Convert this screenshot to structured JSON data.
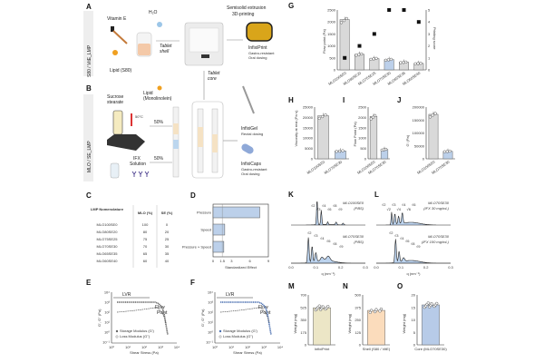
{
  "panel_labels": [
    "A",
    "B",
    "C",
    "D",
    "E",
    "F",
    "G",
    "H",
    "I",
    "J",
    "K",
    "L",
    "M",
    "N",
    "O"
  ],
  "side_labels": {
    "top": "S80 / VitE_LMP",
    "bottom": "MLO / SE_LMP"
  },
  "panel_a": {
    "vitamin_e": "Vitamin E",
    "h2o": "H₂O",
    "lipid": "Lipid (S80)",
    "tablet_shell": [
      "Tablet",
      "shell"
    ],
    "printing": [
      "Semisolid extrusion",
      "3D-printing"
    ],
    "product": {
      "name": "InfixiPrint",
      "lines": [
        "Gastro-resistant",
        "Oral dosing"
      ]
    },
    "tablet_core": [
      "Tablet",
      "core"
    ]
  },
  "panel_b": {
    "sucrose": [
      "Sucrose",
      "stearate"
    ],
    "lipid": [
      "Lipid",
      "(Monolinolein)"
    ],
    "temp": "50°C",
    "pct_top": "50%",
    "pct_bottom": "50%",
    "ifx": [
      "IFX",
      "Solution"
    ],
    "gel": {
      "name": "InfixiGel",
      "lines": [
        "Rectal dosing"
      ]
    },
    "caps": {
      "name": "InfixiCaps",
      "lines": [
        "Gastro-resistant",
        "Oral dosing"
      ]
    }
  },
  "panel_c": {
    "headers": [
      "LMP Nomenclature",
      "MLO (%)",
      "SE (%)"
    ],
    "rows": [
      [
        "MLO100SE0",
        "100",
        "0"
      ],
      [
        "MLO80SE20",
        "80",
        "20"
      ],
      [
        "MLO75SE25",
        "75",
        "25"
      ],
      [
        "MLO70SE30",
        "70",
        "30"
      ],
      [
        "MLO65SE35",
        "65",
        "35"
      ],
      [
        "MLO60SE40",
        "60",
        "40"
      ]
    ]
  },
  "panel_e": {
    "lvr": "LVR",
    "flow_point": [
      "Flow",
      "Point"
    ],
    "legend": [
      "Storage Modulus (G')",
      "Loss Modulus (G'')"
    ],
    "xlabel": "Shear Stress (Pa)",
    "ylabel": "G', G'' (Pa)",
    "xticks": [
      "10⁰",
      "10¹",
      "10²",
      "10³",
      "10⁴"
    ],
    "yticks": [
      "10⁴",
      "10³",
      "10²",
      "10¹",
      "10⁰",
      "10⁻¹"
    ]
  },
  "panel_f": {
    "lvr": "LVR",
    "flow_point": [
      "Flow",
      "Point"
    ],
    "legend": [
      "Storage Modulus (G')",
      "Loss Modulus (G'')"
    ],
    "xlabel": "Shear Stress (Pa)",
    "ylabel": "G', G'' (Pa)",
    "xticks": [
      "10⁰",
      "10¹",
      "10²",
      "10³",
      "10⁴"
    ],
    "yticks": [
      "10⁴",
      "10³",
      "10²",
      "10¹",
      "10⁰",
      "10⁻¹"
    ]
  },
  "panel_k": {
    "top": [
      "MLO100SE0",
      "(PBS)"
    ],
    "bottom": [
      "MLO70SE30",
      "(PBS)"
    ],
    "top_peaks": [
      "√2",
      "√3",
      "√4",
      "√6",
      "√8",
      "√9"
    ],
    "bottom_peaks": [
      "√2",
      "√3",
      "√4",
      "√6",
      "√8",
      "√9"
    ],
    "xlabel": "q (nm⁻¹)",
    "xticks": [
      "0.0",
      "0.1",
      "0.2",
      "0.3"
    ]
  },
  "panel_l": {
    "top": [
      "MLO70SE30",
      "(IFX 30 mg/mL)"
    ],
    "bottom": [
      "MLO70SE30",
      "(IFX 100 mg/mL)"
    ],
    "top_peaks": [
      "√2",
      "√2",
      "√3",
      "√4",
      "√4",
      "√6",
      "√6"
    ],
    "bottom_peaks": [
      "√2",
      "√3",
      "√4",
      "√6",
      "√8",
      "√9"
    ],
    "xlabel": "q (nm⁻¹)",
    "xticks": [
      "0.0",
      "0.1",
      "0.2",
      "0.3"
    ]
  },
  "colors": {
    "gray_bar": "#d9d9d9",
    "blue_bar": "#bcd0ea",
    "yellow_bar": "#ece6c6",
    "orange_bar": "#fbdcbc",
    "core_bar": "#b7cbe8",
    "curve_fill": "#bcd3ee"
  },
  "chart_data": [
    {
      "id": "D",
      "type": "bar",
      "orientation": "horizontal",
      "categories": [
        "Pressure",
        "Speed",
        "Pressure × Speed"
      ],
      "values": [
        7.6,
        1.9,
        1.75
      ],
      "xlabel": "Standardized Effect",
      "xticks": [
        0,
        1.5,
        3,
        6,
        9
      ],
      "xlim": [
        0,
        9
      ],
      "reference_line": 1.5
    },
    {
      "id": "G",
      "type": "bar",
      "categories": [
        "MLO100SE0",
        "MLO80SE20",
        "MLO75SE25",
        "MLO70SE30",
        "MLO65SE35",
        "MLO60SE40"
      ],
      "values": [
        2100,
        650,
        470,
        430,
        320,
        270
      ],
      "secondary": {
        "name": "Printing score",
        "values": [
          1,
          2,
          3,
          5,
          5,
          4
        ],
        "ylim": [
          0,
          5
        ],
        "yticks": [
          0,
          1,
          2,
          3,
          4,
          5
        ]
      },
      "ylabel": "Flow point (Pa)",
      "ylabel2": "Printing score",
      "ylim": [
        0,
        2500
      ],
      "yticks": [
        0,
        500,
        1000,
        1500,
        2000,
        2500
      ],
      "highlight": 3
    },
    {
      "id": "H",
      "type": "bar",
      "categories": [
        "MLO100SE0",
        "MLO70SE30"
      ],
      "values": [
        20800,
        3800
      ],
      "ylabel": "Viscosity at rest (Pa·s)",
      "ylim": [
        0,
        25000
      ],
      "yticks": [
        0,
        5000,
        10000,
        15000,
        20000,
        25000
      ]
    },
    {
      "id": "I",
      "type": "bar",
      "categories": [
        "MLO100SE0",
        "MLO70SE30"
      ],
      "values": [
        2050,
        450
      ],
      "ylabel": "Flow Point (Pa)",
      "ylim": [
        0,
        2500
      ],
      "yticks": [
        0,
        500,
        1000,
        1500,
        2000,
        2500
      ]
    },
    {
      "id": "J",
      "type": "bar",
      "categories": [
        "MLO100SE0",
        "MLO70SE30"
      ],
      "values": [
        172000,
        29000
      ],
      "ylabel": "G' (Pa)",
      "ylim": [
        0,
        200000
      ],
      "yticks": [
        0,
        50000,
        100000,
        150000,
        200000
      ]
    },
    {
      "id": "M",
      "type": "bar",
      "categories": [
        "InfixiPrint"
      ],
      "values": [
        520
      ],
      "ylabel": "Weight (mg)",
      "ylim": [
        0,
        700
      ],
      "yticks": [
        0,
        175,
        350,
        525,
        700
      ]
    },
    {
      "id": "N",
      "type": "bar",
      "categories": [
        "Shell (S80 / VitE)"
      ],
      "values": [
        345
      ],
      "ylabel": "Weight (mg)",
      "ylim": [
        0,
        500
      ],
      "yticks": [
        0,
        125,
        250,
        375,
        500
      ]
    },
    {
      "id": "O",
      "type": "bar",
      "categories": [
        "Core (MLO70SE30)"
      ],
      "values": [
        16
      ],
      "ylabel": "Weight (mg)",
      "ylim": [
        0,
        20
      ],
      "yticks": [
        0,
        5,
        10,
        15,
        20
      ]
    }
  ]
}
